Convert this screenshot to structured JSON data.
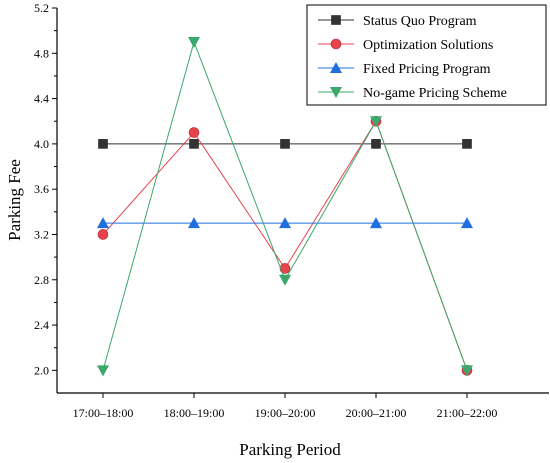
{
  "chart_data": {
    "type": "line",
    "title": "",
    "xlabel": "Parking Period",
    "ylabel": "Parking Fee",
    "categories": [
      "17:00–18:00",
      "18:00–19:00",
      "19:00–20:00",
      "20:00–21:00",
      "21:00–22:00"
    ],
    "ylim": [
      1.8,
      5.2
    ],
    "yticks": [
      "2.0",
      "2.4",
      "2.8",
      "3.2",
      "3.6",
      "4.0",
      "4.4",
      "4.8",
      "5.2"
    ],
    "grid": false,
    "legend_position": "top-right",
    "series": [
      {
        "name": "Status Quo Program",
        "values": [
          4.0,
          4.0,
          4.0,
          4.0,
          4.0
        ],
        "color": "#333333",
        "marker": "square"
      },
      {
        "name": "Optimization Solutions",
        "values": [
          3.2,
          4.1,
          2.9,
          4.2,
          2.0
        ],
        "color": "#e8424d",
        "marker": "circle"
      },
      {
        "name": "Fixed Pricing Program",
        "values": [
          3.3,
          3.3,
          3.3,
          3.3,
          3.3
        ],
        "color": "#1f6fe0",
        "marker": "triangle-up"
      },
      {
        "name": "No-game Pricing Scheme",
        "values": [
          2.0,
          4.9,
          2.8,
          4.2,
          2.0
        ],
        "color": "#3aa86a",
        "marker": "triangle-down"
      }
    ]
  }
}
